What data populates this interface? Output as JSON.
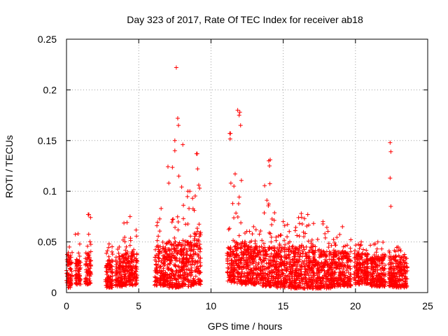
{
  "chart_data": {
    "type": "scatter",
    "title": "Day 323 of 2017, Rate Of TEC Index for receiver ab18",
    "xlabel": "GPS time / hours",
    "ylabel": "ROTI / TECUs",
    "xlim": [
      0,
      25
    ],
    "ylim": [
      0,
      0.25
    ],
    "xticks": [
      "0",
      "5",
      "10",
      "15",
      "20",
      "25"
    ],
    "yticks": [
      "0",
      "0.05",
      "0.1",
      "0.15",
      "0.2",
      "0.25"
    ],
    "grid": true,
    "marker": "plus",
    "color": "#ff0000",
    "segments": [
      {
        "x": [
          0.0,
          0.4
        ],
        "base": [
          0.005,
          0.035
        ],
        "peak": 0.045
      },
      {
        "x": [
          0.6,
          1.0
        ],
        "base": [
          0.008,
          0.032
        ],
        "peak": 0.058
      },
      {
        "x": [
          1.3,
          1.7
        ],
        "base": [
          0.008,
          0.04
        ],
        "peak": 0.077
      },
      {
        "x": [
          2.7,
          3.2
        ],
        "base": [
          0.005,
          0.032
        ],
        "peak": 0.048
      },
      {
        "x": [
          3.4,
          3.9
        ],
        "base": [
          0.006,
          0.035
        ],
        "peak": 0.045
      },
      {
        "x": [
          3.9,
          4.9
        ],
        "base": [
          0.007,
          0.04
        ],
        "peak": 0.075
      },
      {
        "x": [
          6.1,
          7.0
        ],
        "base": [
          0.007,
          0.045
        ],
        "peak": 0.083
      },
      {
        "x": [
          7.0,
          8.0
        ],
        "base": [
          0.005,
          0.05
        ],
        "peak": 0.15
      },
      {
        "x": [
          8.0,
          8.8
        ],
        "base": [
          0.006,
          0.05
        ],
        "peak": 0.1
      },
      {
        "x": [
          8.8,
          9.3
        ],
        "base": [
          0.008,
          0.06
        ],
        "peak": 0.137
      },
      {
        "x": [
          11.1,
          11.6
        ],
        "base": [
          0.01,
          0.045
        ],
        "peak": 0.157
      },
      {
        "x": [
          11.6,
          12.4
        ],
        "base": [
          0.008,
          0.05
        ],
        "peak": 0.178
      },
      {
        "x": [
          12.4,
          13.5
        ],
        "base": [
          0.008,
          0.045
        ],
        "peak": 0.065
      },
      {
        "x": [
          13.5,
          14.5
        ],
        "base": [
          0.006,
          0.045
        ],
        "peak": 0.13
      },
      {
        "x": [
          14.5,
          15.5
        ],
        "base": [
          0.005,
          0.045
        ],
        "peak": 0.07
      },
      {
        "x": [
          15.5,
          17.0
        ],
        "base": [
          0.004,
          0.045
        ],
        "peak": 0.078
      },
      {
        "x": [
          17.0,
          18.5
        ],
        "base": [
          0.004,
          0.04
        ],
        "peak": 0.07
      },
      {
        "x": [
          18.5,
          19.7
        ],
        "base": [
          0.006,
          0.04
        ],
        "peak": 0.065
      },
      {
        "x": [
          19.9,
          20.9
        ],
        "base": [
          0.008,
          0.038
        ],
        "peak": 0.05
      },
      {
        "x": [
          21.0,
          22.1
        ],
        "base": [
          0.006,
          0.035
        ],
        "peak": 0.05
      },
      {
        "x": [
          22.3,
          23.6
        ],
        "base": [
          0.005,
          0.035
        ],
        "peak": 0.045
      }
    ],
    "notable_points": [
      {
        "x": 7.6,
        "y": 0.222
      },
      {
        "x": 7.7,
        "y": 0.172
      },
      {
        "x": 7.75,
        "y": 0.165
      },
      {
        "x": 11.85,
        "y": 0.18
      },
      {
        "x": 11.95,
        "y": 0.175
      },
      {
        "x": 12.05,
        "y": 0.165
      },
      {
        "x": 11.3,
        "y": 0.157
      },
      {
        "x": 14.1,
        "y": 0.131
      },
      {
        "x": 14.05,
        "y": 0.125
      },
      {
        "x": 22.4,
        "y": 0.148
      },
      {
        "x": 22.45,
        "y": 0.139
      },
      {
        "x": 22.4,
        "y": 0.113
      },
      {
        "x": 22.45,
        "y": 0.085
      },
      {
        "x": 9.0,
        "y": 0.137
      },
      {
        "x": 8.05,
        "y": 0.146
      },
      {
        "x": 7.5,
        "y": 0.14
      },
      {
        "x": 1.55,
        "y": 0.077
      },
      {
        "x": 16.7,
        "y": 0.077
      }
    ]
  }
}
